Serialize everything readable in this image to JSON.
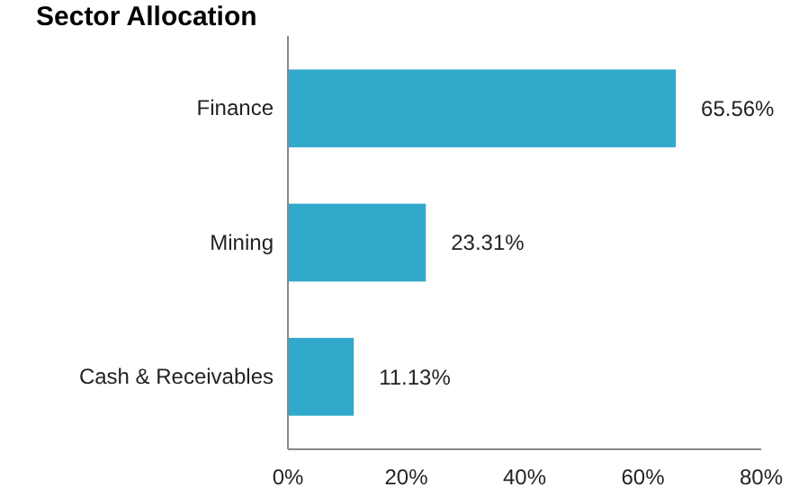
{
  "chart_data": {
    "type": "bar",
    "orientation": "horizontal",
    "title": "Sector Allocation",
    "categories": [
      "Finance",
      "Mining",
      "Cash & Receivables"
    ],
    "values": [
      65.56,
      23.31,
      11.13
    ],
    "color": "#31a9cb",
    "value_labels": [
      "65.56%",
      "23.31%",
      "11.13%"
    ],
    "xlim": [
      0,
      80
    ],
    "xticks": [
      {
        "value": 0,
        "label": "0%"
      },
      {
        "value": 20,
        "label": "20%"
      },
      {
        "value": 40,
        "label": "40%"
      },
      {
        "value": 60,
        "label": "60%"
      },
      {
        "value": 80,
        "label": "80%"
      }
    ],
    "grid": false
  }
}
